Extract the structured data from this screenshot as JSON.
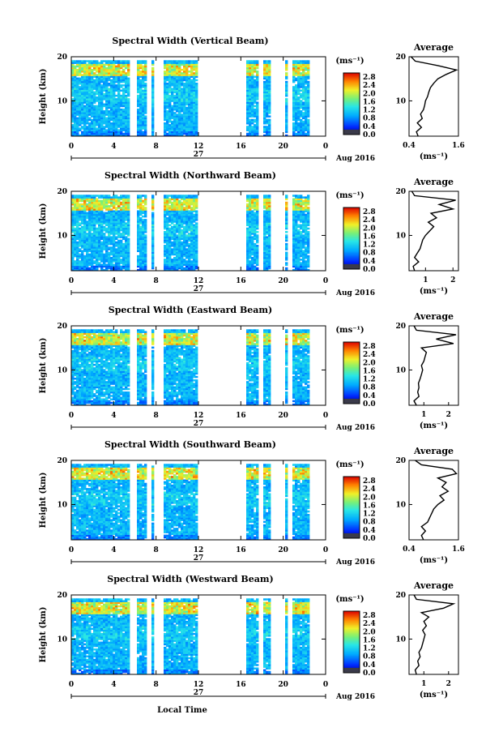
{
  "figure": {
    "ylabel": "Height (km)",
    "xlabel": "Local Time",
    "date_label": "Aug 2016",
    "day_label": "27",
    "colorbar_unit": "(ms⁻¹)",
    "avg_title": "Average",
    "avg_xunit": "(ms⁻¹)"
  },
  "chart_data": [
    {
      "type": "heatmap",
      "title": "Spectral Width (Vertical Beam)",
      "x_ticks": [
        "0",
        "4",
        "8",
        "12",
        "16",
        "20",
        "0"
      ],
      "xlim": [
        0,
        24
      ],
      "y_ticks": [
        "10",
        "20"
      ],
      "ylim": [
        2,
        20
      ],
      "colorbar_ticks": [
        "0.0",
        "0.4",
        "0.8",
        "1.2",
        "1.6",
        "2.0",
        "2.4",
        "2.8"
      ],
      "colorbar_range": [
        0,
        3.0
      ],
      "data_gaps_hours": [
        [
          5.6,
          6.1
        ],
        [
          7.1,
          7.5
        ],
        [
          7.8,
          8.8
        ],
        [
          12.0,
          16.5
        ],
        [
          17.6,
          18.0
        ],
        [
          18.7,
          20.2
        ],
        [
          20.4,
          20.8
        ]
      ],
      "average_profile": {
        "x_ticks": [
          "0.4",
          "1.6"
        ],
        "xlim": [
          0.4,
          1.6
        ],
        "heights_km": [
          2,
          3,
          4,
          5,
          6,
          7,
          8,
          9,
          10,
          11,
          12,
          13,
          14,
          15,
          16,
          17,
          18,
          19,
          20
        ],
        "values": [
          0.62,
          0.58,
          0.7,
          0.6,
          0.72,
          0.68,
          0.75,
          0.78,
          0.8,
          0.85,
          0.88,
          0.92,
          1.0,
          1.1,
          1.3,
          1.55,
          1.1,
          0.55,
          0.45
        ]
      }
    },
    {
      "type": "heatmap",
      "title": "Spectral Width (Northward Beam)",
      "x_ticks": [
        "0",
        "4",
        "8",
        "12",
        "16",
        "20",
        "0"
      ],
      "xlim": [
        0,
        24
      ],
      "y_ticks": [
        "10",
        "20"
      ],
      "ylim": [
        2,
        20
      ],
      "colorbar_ticks": [
        "0.0",
        "0.4",
        "0.8",
        "1.2",
        "1.6",
        "2.0",
        "2.4",
        "2.8"
      ],
      "colorbar_range": [
        0,
        3.0
      ],
      "data_gaps_hours": [
        [
          5.6,
          6.1
        ],
        [
          7.1,
          7.5
        ],
        [
          7.8,
          8.8
        ],
        [
          12.0,
          16.5
        ],
        [
          17.6,
          18.0
        ],
        [
          18.7,
          20.2
        ],
        [
          20.4,
          20.8
        ]
      ],
      "average_profile": {
        "x_ticks": [
          "1",
          "2"
        ],
        "xlim": [
          0.4,
          2.2
        ],
        "heights_km": [
          2,
          3,
          4,
          5,
          6,
          7,
          8,
          9,
          10,
          11,
          12,
          13,
          14,
          15,
          16,
          17,
          18,
          19,
          20
        ],
        "values": [
          0.6,
          0.55,
          0.75,
          0.6,
          0.7,
          0.8,
          0.85,
          0.9,
          1.0,
          1.15,
          1.3,
          1.1,
          1.4,
          1.2,
          2.0,
          1.5,
          2.1,
          0.6,
          0.5
        ]
      }
    },
    {
      "type": "heatmap",
      "title": "Spectral Width (Eastward Beam)",
      "x_ticks": [
        "0",
        "4",
        "8",
        "12",
        "16",
        "20",
        "0"
      ],
      "xlim": [
        0,
        24
      ],
      "y_ticks": [
        "10",
        "20"
      ],
      "ylim": [
        2,
        20
      ],
      "colorbar_ticks": [
        "0.0",
        "0.4",
        "0.8",
        "1.2",
        "1.6",
        "2.0",
        "2.4",
        "2.8"
      ],
      "colorbar_range": [
        0,
        3.0
      ],
      "data_gaps_hours": [
        [
          5.6,
          6.1
        ],
        [
          7.1,
          7.5
        ],
        [
          7.8,
          8.8
        ],
        [
          12.0,
          16.5
        ],
        [
          17.6,
          18.0
        ],
        [
          18.7,
          20.2
        ],
        [
          20.4,
          20.8
        ]
      ],
      "average_profile": {
        "x_ticks": [
          "1",
          "2"
        ],
        "xlim": [
          0.4,
          2.4
        ],
        "heights_km": [
          2,
          3,
          4,
          5,
          6,
          7,
          8,
          9,
          10,
          11,
          12,
          13,
          14,
          15,
          16,
          17,
          18,
          19,
          20
        ],
        "values": [
          0.7,
          0.6,
          0.8,
          0.75,
          0.8,
          0.78,
          0.85,
          0.9,
          0.95,
          0.9,
          1.0,
          1.05,
          1.1,
          0.9,
          2.2,
          1.5,
          2.3,
          0.7,
          0.6
        ]
      }
    },
    {
      "type": "heatmap",
      "title": "Spectral Width (Southward Beam)",
      "x_ticks": [
        "0",
        "4",
        "8",
        "12",
        "16",
        "20",
        "0"
      ],
      "xlim": [
        0,
        24
      ],
      "y_ticks": [
        "10",
        "20"
      ],
      "ylim": [
        2,
        20
      ],
      "colorbar_ticks": [
        "0.0",
        "0.4",
        "0.8",
        "1.2",
        "1.6",
        "2.0",
        "2.4",
        "2.8"
      ],
      "colorbar_range": [
        0,
        3.0
      ],
      "data_gaps_hours": [
        [
          5.6,
          6.1
        ],
        [
          7.1,
          7.5
        ],
        [
          7.8,
          8.8
        ],
        [
          12.0,
          16.5
        ],
        [
          17.6,
          18.0
        ],
        [
          18.7,
          20.2
        ],
        [
          20.4,
          20.8
        ]
      ],
      "average_profile": {
        "x_ticks": [
          "0.4",
          "1.6"
        ],
        "xlim": [
          0.4,
          1.6
        ],
        "heights_km": [
          2,
          3,
          4,
          5,
          6,
          7,
          8,
          9,
          10,
          11,
          12,
          13,
          14,
          15,
          16,
          17,
          18,
          19,
          20
        ],
        "values": [
          0.75,
          0.7,
          0.8,
          0.7,
          0.85,
          0.9,
          0.95,
          1.0,
          1.1,
          1.25,
          1.15,
          1.35,
          1.2,
          1.3,
          1.1,
          1.55,
          1.45,
          0.7,
          0.55
        ]
      }
    },
    {
      "type": "heatmap",
      "title": "Spectral Width (Westward Beam)",
      "x_ticks": [
        "0",
        "4",
        "8",
        "12",
        "16",
        "20",
        "0"
      ],
      "xlim": [
        0,
        24
      ],
      "y_ticks": [
        "10",
        "20"
      ],
      "ylim": [
        2,
        20
      ],
      "colorbar_ticks": [
        "0.0",
        "0.4",
        "0.8",
        "1.2",
        "1.6",
        "2.0",
        "2.4",
        "2.8"
      ],
      "colorbar_range": [
        0,
        3.0
      ],
      "data_gaps_hours": [
        [
          5.6,
          6.1
        ],
        [
          7.1,
          7.5
        ],
        [
          7.8,
          8.8
        ],
        [
          12.0,
          16.5
        ],
        [
          17.6,
          18.0
        ],
        [
          18.7,
          20.2
        ],
        [
          20.4,
          20.8
        ]
      ],
      "average_profile": {
        "x_ticks": [
          "1",
          "2"
        ],
        "xlim": [
          0.4,
          2.4
        ],
        "heights_km": [
          2,
          3,
          4,
          5,
          6,
          7,
          8,
          9,
          10,
          11,
          12,
          13,
          14,
          15,
          16,
          17,
          18,
          19,
          20
        ],
        "values": [
          0.7,
          0.65,
          0.8,
          0.75,
          0.85,
          0.8,
          0.9,
          0.95,
          1.0,
          1.05,
          0.95,
          1.1,
          1.0,
          1.2,
          0.9,
          1.8,
          2.2,
          0.7,
          0.6
        ]
      }
    }
  ]
}
